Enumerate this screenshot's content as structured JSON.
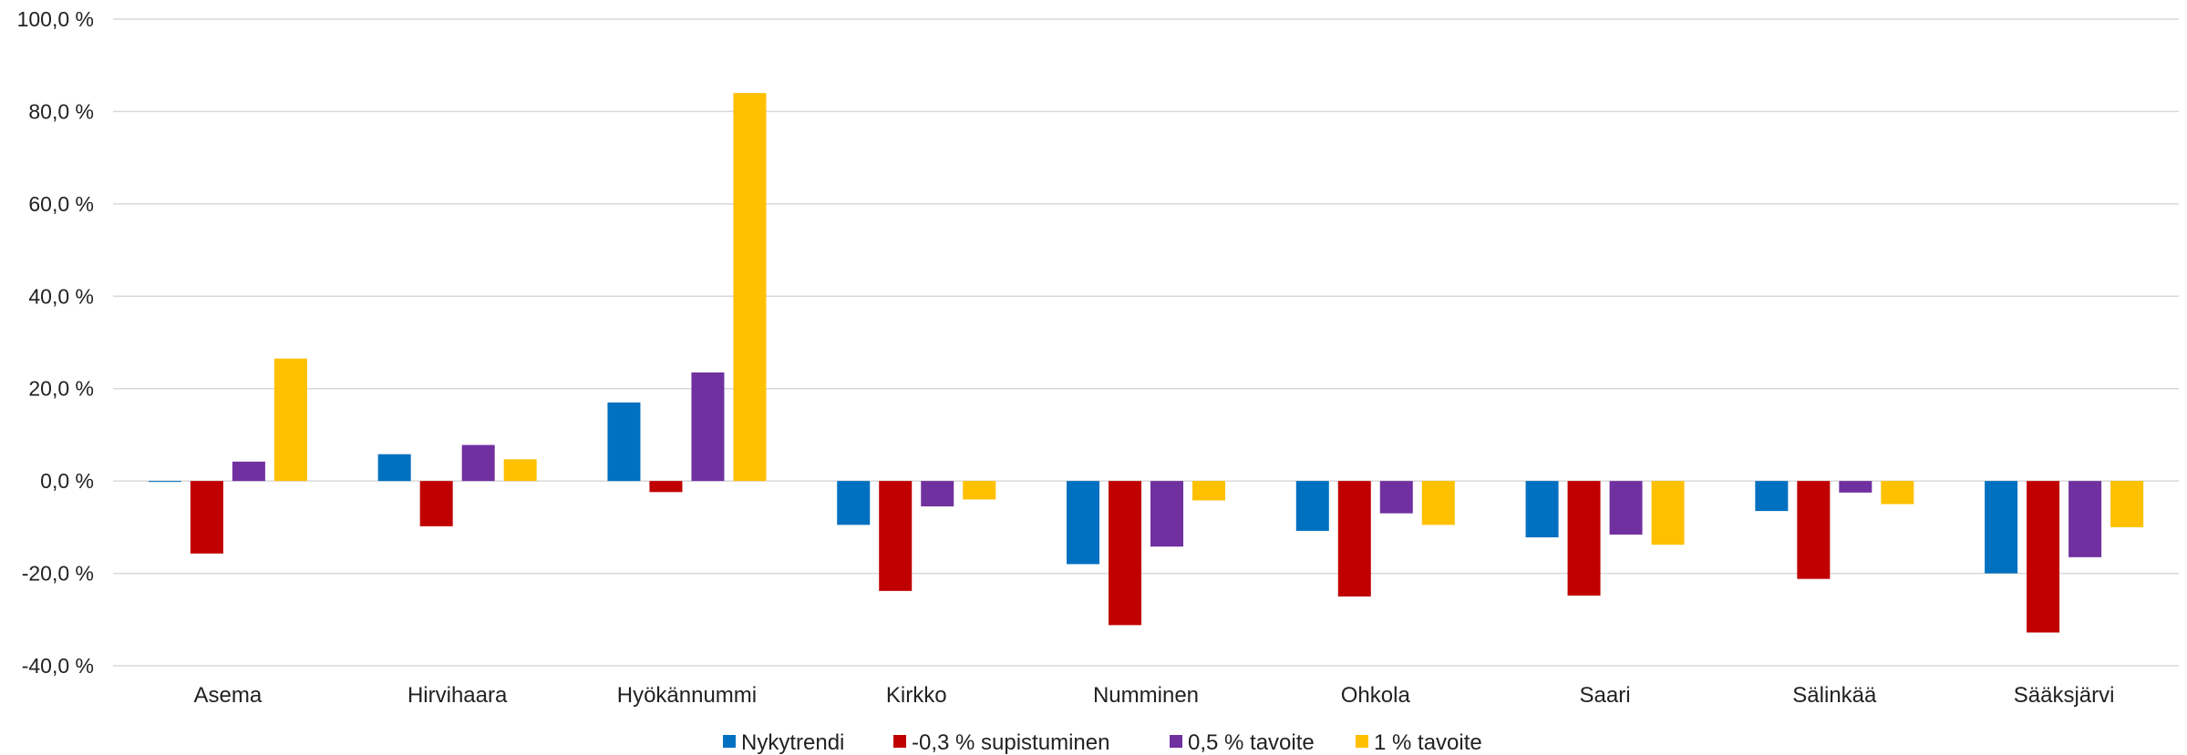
{
  "chart_data": {
    "type": "bar",
    "categories": [
      "Asema",
      "Hirvihaara",
      "Hyökännummi",
      "Kirkko",
      "Numminen",
      "Ohkola",
      "Saari",
      "Sälinkää",
      "Sääksjärvi"
    ],
    "series": [
      {
        "name": "Nykytrendi",
        "color": "#0070C0",
        "values": [
          -0.2,
          5.8,
          17.0,
          -9.5,
          -18.0,
          -10.8,
          -12.2,
          -6.5,
          -20.0
        ]
      },
      {
        "name": "-0,3 % supistuminen",
        "color": "#C00000",
        "values": [
          -15.7,
          -9.8,
          -2.4,
          -23.8,
          -31.2,
          -25.0,
          -24.8,
          -21.2,
          -32.8
        ]
      },
      {
        "name": "0,5 % tavoite",
        "color": "#7030A0",
        "values": [
          4.2,
          7.8,
          23.5,
          -5.5,
          -14.2,
          -7.0,
          -11.6,
          -2.5,
          -16.5
        ]
      },
      {
        "name": "1 % tavoite",
        "color": "#FFC000",
        "values": [
          26.5,
          4.7,
          84.0,
          -4.0,
          -4.2,
          -9.5,
          -13.8,
          -5.0,
          -10.0
        ]
      }
    ],
    "y_ticks": [
      "100,0 %",
      "80,0 %",
      "60,0 %",
      "40,0 %",
      "20,0 %",
      "0,0 %",
      "-20,0 %",
      "-40,0 %"
    ],
    "ylim": [
      -40,
      100
    ],
    "grid": true,
    "legend_position": "bottom"
  }
}
